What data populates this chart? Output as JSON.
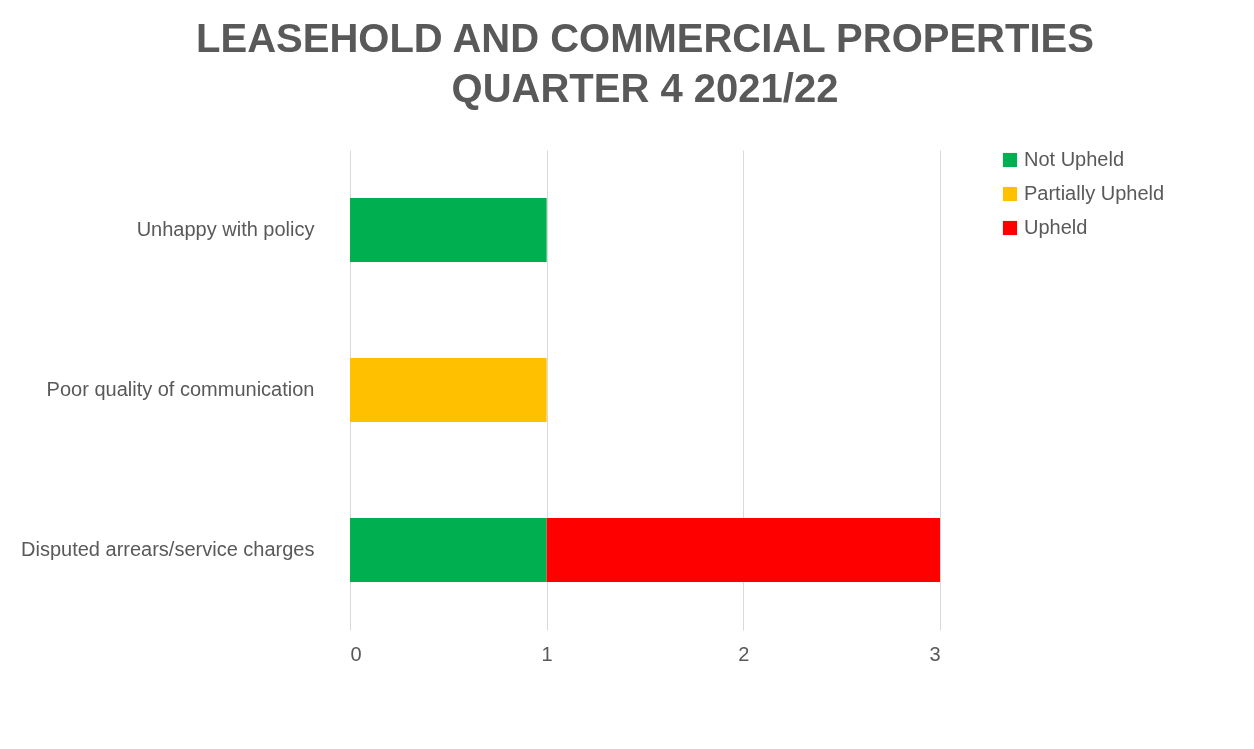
{
  "chart_data": {
    "type": "bar",
    "orientation": "horizontal",
    "stacked": true,
    "title": "LEASEHOLD AND COMMERCIAL PROPERTIES\nQUARTER 4 2021/22",
    "categories": [
      "Unhappy with policy",
      "Poor quality of communication",
      "Disputed arrears/service charges"
    ],
    "series": [
      {
        "name": "Not Upheld",
        "color": "#00b050",
        "values": [
          1,
          null,
          1
        ]
      },
      {
        "name": "Partially Upheld",
        "color": "#ffc000",
        "values": [
          null,
          1,
          null
        ]
      },
      {
        "name": "Upheld",
        "color": "#ff0000",
        "values": [
          null,
          null,
          2
        ]
      }
    ],
    "xlim": [
      0,
      3
    ],
    "xticks": [
      0,
      1,
      2,
      3
    ],
    "grid": "x",
    "legend": "right"
  }
}
